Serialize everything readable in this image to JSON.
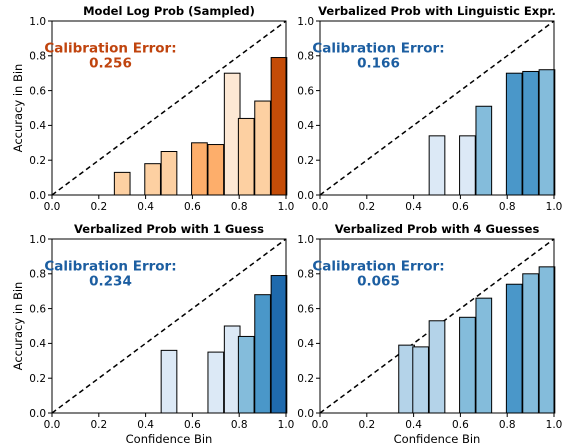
{
  "colors": {
    "diagonal": "#000000",
    "bar_edge": "#000000",
    "orange_palette": [
      "#fde8d4",
      "#fdd0a2",
      "#fdae6b",
      "#f0873d",
      "#c44c08"
    ],
    "blue_palette": [
      "#dce9f6",
      "#b4d3e9",
      "#84bcdb",
      "#4a97c9",
      "#1f6aad"
    ],
    "annotation_orange": "#c0440e",
    "annotation_blue": "#1c5ea1"
  },
  "chart_data": [
    {
      "type": "bar",
      "title": "Model Log Prob (Sampled)",
      "xlabel": "",
      "ylabel": "Accuracy in Bin",
      "xlim": [
        0,
        1
      ],
      "ylim": [
        0,
        1
      ],
      "xticks": [
        "0.0",
        "0.2",
        "0.4",
        "0.6",
        "0.8",
        "1.0"
      ],
      "yticks": [
        "0.0",
        "0.2",
        "0.4",
        "0.6",
        "0.8",
        "1.0"
      ],
      "palette": "orange",
      "annotation": {
        "label": "Calibration Error:",
        "value": "0.256",
        "color": "annotation_orange"
      },
      "bin_width": 0.067,
      "bins": [
        {
          "x": 0.3,
          "y": 0.13,
          "shade": 1
        },
        {
          "x": 0.43,
          "y": 0.18,
          "shade": 1
        },
        {
          "x": 0.5,
          "y": 0.25,
          "shade": 1
        },
        {
          "x": 0.63,
          "y": 0.3,
          "shade": 2
        },
        {
          "x": 0.7,
          "y": 0.29,
          "shade": 2
        },
        {
          "x": 0.77,
          "y": 0.7,
          "shade": 0
        },
        {
          "x": 0.83,
          "y": 0.44,
          "shade": 1
        },
        {
          "x": 0.9,
          "y": 0.54,
          "shade": 1
        },
        {
          "x": 0.97,
          "y": 0.79,
          "shade": 4
        }
      ]
    },
    {
      "type": "bar",
      "title": "Verbalized Prob with Linguistic Expr.",
      "xlabel": "",
      "ylabel": "",
      "xlim": [
        0,
        1
      ],
      "ylim": [
        0,
        1
      ],
      "xticks": [
        "0.0",
        "0.2",
        "0.4",
        "0.6",
        "0.8",
        "1.0"
      ],
      "yticks": [
        "0.0",
        "0.2",
        "0.4",
        "0.6",
        "0.8",
        "1.0"
      ],
      "palette": "blue",
      "annotation": {
        "label": "Calibration Error:",
        "value": "0.166",
        "color": "annotation_blue"
      },
      "bin_width": 0.067,
      "bins": [
        {
          "x": 0.5,
          "y": 0.34,
          "shade": 0
        },
        {
          "x": 0.63,
          "y": 0.34,
          "shade": 0
        },
        {
          "x": 0.7,
          "y": 0.51,
          "shade": 2
        },
        {
          "x": 0.83,
          "y": 0.7,
          "shade": 3
        },
        {
          "x": 0.9,
          "y": 0.71,
          "shade": 3
        },
        {
          "x": 0.97,
          "y": 0.72,
          "shade": 2
        }
      ]
    },
    {
      "type": "bar",
      "title": "Verbalized Prob with 1 Guess",
      "xlabel": "Confidence Bin",
      "ylabel": "Accuracy in Bin",
      "xlim": [
        0,
        1
      ],
      "ylim": [
        0,
        1
      ],
      "xticks": [
        "0.0",
        "0.2",
        "0.4",
        "0.6",
        "0.8",
        "1.0"
      ],
      "yticks": [
        "0.0",
        "0.2",
        "0.4",
        "0.6",
        "0.8",
        "1.0"
      ],
      "palette": "blue",
      "annotation": {
        "label": "Calibration Error:",
        "value": "0.234",
        "color": "annotation_blue"
      },
      "bin_width": 0.067,
      "bins": [
        {
          "x": 0.5,
          "y": 0.36,
          "shade": 0
        },
        {
          "x": 0.7,
          "y": 0.35,
          "shade": 0
        },
        {
          "x": 0.77,
          "y": 0.5,
          "shade": 0
        },
        {
          "x": 0.83,
          "y": 0.44,
          "shade": 2
        },
        {
          "x": 0.9,
          "y": 0.68,
          "shade": 3
        },
        {
          "x": 0.97,
          "y": 0.79,
          "shade": 4
        }
      ]
    },
    {
      "type": "bar",
      "title": "Verbalized Prob with 4 Guesses",
      "xlabel": "Confidence Bin",
      "ylabel": "",
      "xlim": [
        0,
        1
      ],
      "ylim": [
        0,
        1
      ],
      "xticks": [
        "0.0",
        "0.2",
        "0.4",
        "0.6",
        "0.8",
        "1.0"
      ],
      "yticks": [
        "0.0",
        "0.2",
        "0.4",
        "0.6",
        "0.8",
        "1.0"
      ],
      "palette": "blue",
      "annotation": {
        "label": "Calibration Error:",
        "value": "0.065",
        "color": "annotation_blue"
      },
      "bin_width": 0.067,
      "bins": [
        {
          "x": 0.37,
          "y": 0.39,
          "shade": 1
        },
        {
          "x": 0.43,
          "y": 0.38,
          "shade": 1
        },
        {
          "x": 0.5,
          "y": 0.53,
          "shade": 1
        },
        {
          "x": 0.63,
          "y": 0.55,
          "shade": 2
        },
        {
          "x": 0.7,
          "y": 0.66,
          "shade": 2
        },
        {
          "x": 0.83,
          "y": 0.74,
          "shade": 3
        },
        {
          "x": 0.9,
          "y": 0.8,
          "shade": 2
        },
        {
          "x": 0.97,
          "y": 0.84,
          "shade": 2
        }
      ]
    }
  ]
}
